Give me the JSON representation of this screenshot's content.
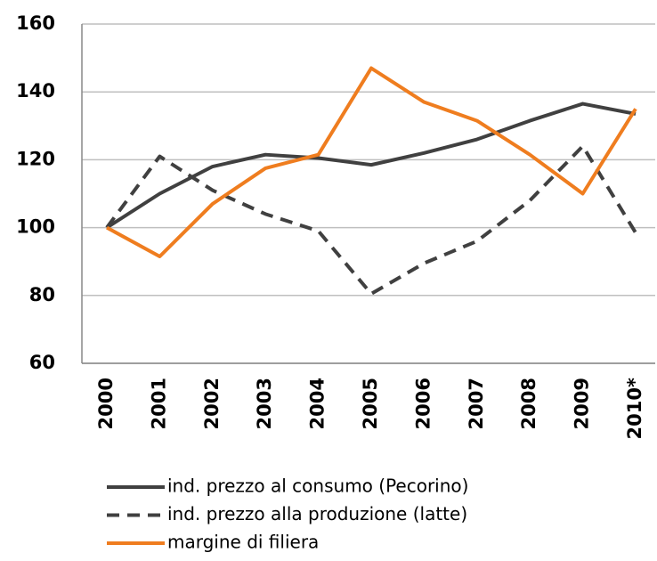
{
  "chart_data": {
    "type": "line",
    "categories": [
      "2000",
      "2001",
      "2002",
      "2003",
      "2004",
      "2005",
      "2006",
      "2007",
      "2008",
      "2009",
      "2010*"
    ],
    "series": [
      {
        "name": "ind. prezzo al consumo (Pecorino)",
        "color": "#404040",
        "dash": false,
        "values": [
          100,
          110,
          118,
          121.5,
          120.5,
          118.5,
          122,
          126,
          131.5,
          136.5,
          133.5
        ]
      },
      {
        "name": "ind. prezzo alla produzione (latte)",
        "color": "#404040",
        "dash": true,
        "values": [
          100,
          121,
          111,
          104,
          99,
          80.5,
          89.5,
          96,
          108,
          124,
          98.5
        ]
      },
      {
        "name": "margine di filiera",
        "color": "#ef7d1f",
        "dash": false,
        "values": [
          100,
          91.5,
          107,
          117.5,
          121.5,
          147,
          137,
          131.5,
          121.5,
          110,
          135
        ]
      }
    ],
    "ylim": [
      60,
      160
    ],
    "yticks": [
      60,
      80,
      100,
      120,
      140,
      160
    ],
    "grid": true
  }
}
